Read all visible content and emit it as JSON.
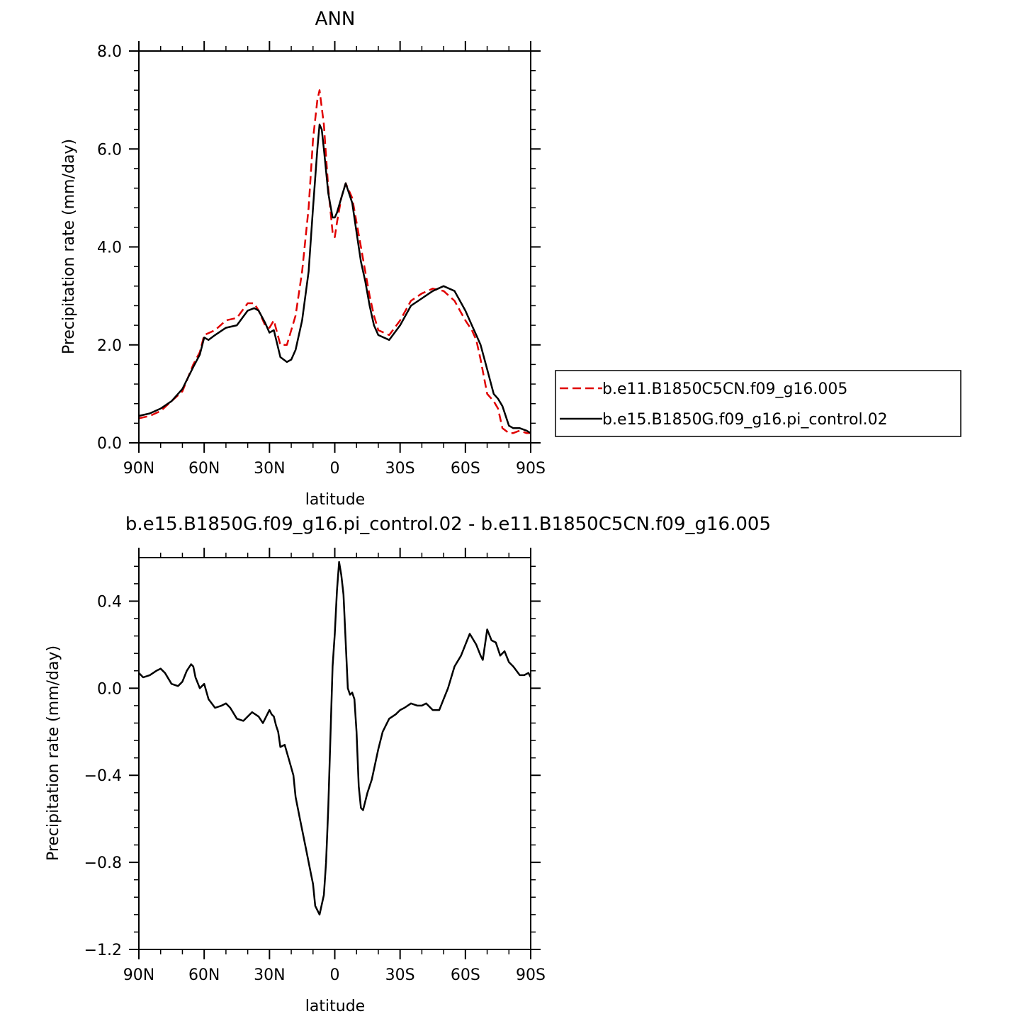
{
  "chart_data": [
    {
      "type": "line",
      "title": "ANN",
      "xlabel": "latitude",
      "ylabel": "Precipitation rate (mm/day)",
      "xlim": [
        90,
        -90
      ],
      "ylim": [
        0,
        8
      ],
      "x_ticks": [
        90,
        60,
        30,
        0,
        -30,
        -60,
        -90
      ],
      "x_tick_labels": [
        "90N",
        "60N",
        "30N",
        "0",
        "30S",
        "60S",
        "90S"
      ],
      "y_ticks": [
        0,
        2,
        4,
        6,
        8
      ],
      "y_tick_labels": [
        "0.0",
        "2.0",
        "4.0",
        "6.0",
        "8.0"
      ],
      "legend_position": "right",
      "series": [
        {
          "name": "b.e11.B1850C5CN.f09_g16.005",
          "color": "#e00000",
          "dash": "dashed",
          "x": [
            90,
            85,
            80,
            75,
            70,
            65,
            62,
            60,
            55,
            50,
            45,
            40,
            37,
            35,
            32,
            30,
            28,
            25,
            22,
            18,
            15,
            12,
            10,
            8,
            7,
            5,
            3,
            1,
            0,
            -1,
            -3,
            -5,
            -8,
            -10,
            -12,
            -14,
            -16,
            -18,
            -20,
            -25,
            -30,
            -35,
            -40,
            -45,
            -50,
            -55,
            -60,
            -63,
            -65,
            -67,
            -70,
            -73,
            -75,
            -77,
            -80,
            -82,
            -85,
            -88,
            -90
          ],
          "y": [
            0.5,
            0.55,
            0.65,
            0.85,
            1.05,
            1.6,
            1.85,
            2.2,
            2.3,
            2.5,
            2.55,
            2.85,
            2.85,
            2.7,
            2.4,
            2.35,
            2.5,
            2.0,
            2.0,
            2.6,
            3.5,
            4.8,
            6.2,
            7.0,
            7.2,
            6.5,
            5.2,
            4.3,
            4.2,
            4.5,
            5.0,
            5.3,
            5.0,
            4.5,
            4.0,
            3.5,
            3.0,
            2.6,
            2.3,
            2.2,
            2.5,
            2.9,
            3.05,
            3.15,
            3.1,
            2.9,
            2.5,
            2.3,
            2.1,
            1.7,
            1.0,
            0.85,
            0.7,
            0.3,
            0.2,
            0.2,
            0.25,
            0.2,
            0.2
          ]
        },
        {
          "name": "b.e15.B1850G.f09_g16.pi_control.02",
          "color": "#000000",
          "dash": "solid",
          "x": [
            90,
            85,
            80,
            75,
            70,
            65,
            62,
            60,
            58,
            55,
            50,
            45,
            40,
            37,
            35,
            32,
            30,
            28,
            25,
            22,
            20,
            18,
            15,
            12,
            10,
            8,
            7,
            6,
            5,
            3,
            1,
            0,
            -1,
            -3,
            -5,
            -8,
            -10,
            -12,
            -14,
            -16,
            -18,
            -20,
            -25,
            -30,
            -35,
            -40,
            -45,
            -50,
            -55,
            -60,
            -63,
            -65,
            -67,
            -70,
            -73,
            -75,
            -77,
            -80,
            -82,
            -85,
            -88,
            -90
          ],
          "y": [
            0.55,
            0.6,
            0.7,
            0.85,
            1.1,
            1.55,
            1.8,
            2.15,
            2.1,
            2.2,
            2.35,
            2.4,
            2.7,
            2.75,
            2.7,
            2.45,
            2.25,
            2.3,
            1.75,
            1.65,
            1.7,
            1.9,
            2.5,
            3.5,
            4.8,
            6.0,
            6.5,
            6.4,
            6.0,
            5.1,
            4.6,
            4.6,
            4.7,
            5.0,
            5.3,
            4.9,
            4.3,
            3.7,
            3.3,
            2.8,
            2.4,
            2.2,
            2.1,
            2.4,
            2.8,
            2.95,
            3.1,
            3.2,
            3.1,
            2.7,
            2.4,
            2.2,
            2.0,
            1.5,
            1.0,
            0.9,
            0.75,
            0.35,
            0.3,
            0.3,
            0.25,
            0.2
          ]
        }
      ]
    },
    {
      "type": "line",
      "title": "b.e15.B1850G.f09_g16.pi_control.02 - b.e11.B1850C5CN.f09_g16.005",
      "xlabel": "latitude",
      "ylabel": "Precipitation rate (mm/day)",
      "xlim": [
        90,
        -90
      ],
      "ylim": [
        -1.2,
        0.6
      ],
      "x_ticks": [
        90,
        60,
        30,
        0,
        -30,
        -60,
        -90
      ],
      "x_tick_labels": [
        "90N",
        "60N",
        "30N",
        "0",
        "30S",
        "60S",
        "90S"
      ],
      "y_ticks": [
        -1.2,
        -0.8,
        -0.4,
        0.0,
        0.4
      ],
      "y_tick_labels": [
        "−1.2",
        "−0.8",
        "−0.4",
        "0.0",
        "0.4"
      ],
      "series": [
        {
          "color": "#000000",
          "dash": "solid",
          "x": [
            90,
            88,
            85,
            82,
            80,
            78,
            75,
            72,
            70,
            68,
            66,
            65,
            64,
            62,
            60,
            58,
            55,
            52,
            50,
            48,
            45,
            42,
            40,
            38,
            35,
            33,
            30,
            29,
            28,
            27,
            26,
            25,
            23,
            21,
            19,
            18,
            16,
            15,
            13,
            11,
            10,
            9,
            7,
            5,
            4,
            3,
            1,
            0,
            -1,
            -2,
            -3,
            -4,
            -6,
            -7,
            -8,
            -9,
            -10,
            -11,
            -12,
            -13,
            -15,
            -17,
            -20,
            -22,
            -25,
            -28,
            -30,
            -32,
            -35,
            -38,
            -40,
            -42,
            -45,
            -48,
            -50,
            -52,
            -55,
            -58,
            -60,
            -62,
            -65,
            -67,
            -68,
            -70,
            -72,
            -74,
            -75,
            -76,
            -78,
            -80,
            -82,
            -85,
            -87,
            -89,
            -90
          ],
          "y": [
            0.07,
            0.05,
            0.06,
            0.08,
            0.09,
            0.07,
            0.02,
            0.01,
            0.03,
            0.08,
            0.11,
            0.1,
            0.05,
            0.0,
            0.02,
            -0.05,
            -0.09,
            -0.08,
            -0.07,
            -0.09,
            -0.14,
            -0.15,
            -0.13,
            -0.11,
            -0.13,
            -0.16,
            -0.1,
            -0.12,
            -0.13,
            -0.17,
            -0.2,
            -0.27,
            -0.26,
            -0.33,
            -0.4,
            -0.5,
            -0.6,
            -0.65,
            -0.75,
            -0.85,
            -0.9,
            -1.0,
            -1.04,
            -0.95,
            -0.8,
            -0.55,
            0.1,
            0.25,
            0.45,
            0.58,
            0.52,
            0.43,
            0.0,
            -0.03,
            -0.02,
            -0.05,
            -0.2,
            -0.45,
            -0.55,
            -0.56,
            -0.48,
            -0.42,
            -0.28,
            -0.2,
            -0.14,
            -0.12,
            -0.1,
            -0.09,
            -0.07,
            -0.08,
            -0.08,
            -0.07,
            -0.1,
            -0.1,
            -0.05,
            0.0,
            0.1,
            0.15,
            0.2,
            0.25,
            0.2,
            0.15,
            0.13,
            0.27,
            0.22,
            0.21,
            0.18,
            0.15,
            0.17,
            0.12,
            0.1,
            0.06,
            0.06,
            0.07,
            0.05
          ]
        }
      ]
    }
  ]
}
